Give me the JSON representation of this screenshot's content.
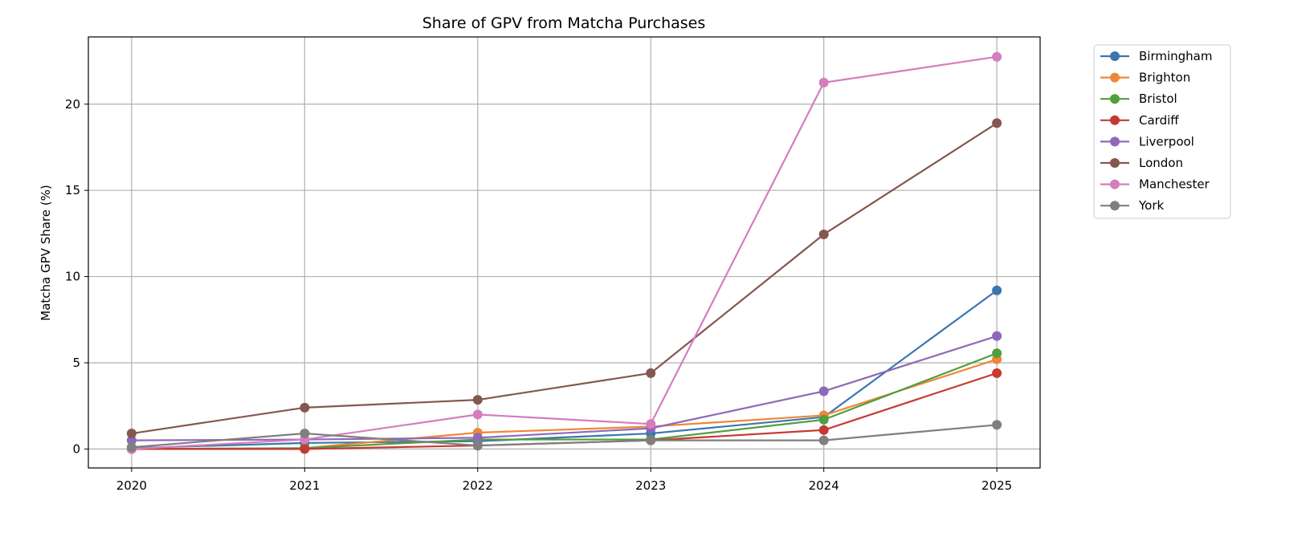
{
  "chart_data": {
    "type": "line",
    "title": "Share of GPV from Matcha Purchases",
    "xlabel": "",
    "ylabel": "Matcha GPV Share (%)",
    "x": [
      2020,
      2021,
      2022,
      2023,
      2024,
      2025
    ],
    "x_tick_labels": [
      "2020",
      "2021",
      "2022",
      "2023",
      "2024",
      "2025"
    ],
    "y_ticks": [
      0,
      5,
      10,
      15,
      20
    ],
    "y_tick_labels": [
      "0",
      "5",
      "10",
      "15",
      "20"
    ],
    "xlim": [
      2019.75,
      2025.25
    ],
    "ylim": [
      -1.1,
      23.9
    ],
    "grid": true,
    "legend_position": "outside-top-right",
    "marker": "circle",
    "series": [
      {
        "name": "Birmingham",
        "color": "#3b75af",
        "values": [
          0.05,
          0.35,
          0.45,
          0.9,
          1.85,
          9.2
        ]
      },
      {
        "name": "Brighton",
        "color": "#ef8636",
        "values": [
          0.0,
          0.05,
          0.95,
          1.3,
          1.95,
          5.2
        ]
      },
      {
        "name": "Bristol",
        "color": "#519e3e",
        "values": [
          0.0,
          0.05,
          0.55,
          0.55,
          1.7,
          5.55
        ]
      },
      {
        "name": "Cardiff",
        "color": "#c53a32",
        "values": [
          0.0,
          0.0,
          0.2,
          0.5,
          1.1,
          4.4
        ]
      },
      {
        "name": "Liverpool",
        "color": "#8d69b8",
        "values": [
          0.5,
          0.55,
          0.65,
          1.2,
          3.35,
          6.55
        ]
      },
      {
        "name": "London",
        "color": "#84584e",
        "values": [
          0.9,
          2.4,
          2.85,
          4.4,
          12.45,
          18.9
        ]
      },
      {
        "name": "Manchester",
        "color": "#d57dbe",
        "values": [
          0.0,
          0.55,
          2.0,
          1.45,
          21.25,
          22.75
        ]
      },
      {
        "name": "York",
        "color": "#7f7f7f",
        "values": [
          0.1,
          0.9,
          0.2,
          0.5,
          0.5,
          1.4
        ]
      }
    ]
  }
}
